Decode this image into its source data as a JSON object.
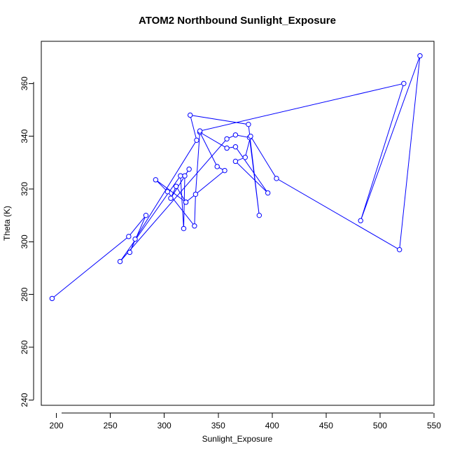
{
  "chart_data": {
    "type": "line",
    "title": "ATOM2 Northbound Sunlight_Exposure",
    "xlabel": "Sunlight_Exposure",
    "ylabel": "Theta (K)",
    "xlim": [
      186,
      550
    ],
    "ylim": [
      238,
      376
    ],
    "xticks": [
      200,
      250,
      300,
      350,
      400,
      450,
      500,
      550
    ],
    "yticks": [
      240,
      260,
      280,
      300,
      320,
      340,
      360
    ],
    "grid": false,
    "line_color": "#0000ff",
    "point_style": "open-circle",
    "series": [
      {
        "points": [
          {
            "x": 196,
            "y": 278.5
          },
          {
            "x": 267,
            "y": 302
          },
          {
            "x": 283,
            "y": 310
          },
          {
            "x": 268,
            "y": 296
          },
          {
            "x": 273,
            "y": 301
          },
          {
            "x": 330,
            "y": 338.5
          },
          {
            "x": 324,
            "y": 348
          },
          {
            "x": 378,
            "y": 344.5
          },
          {
            "x": 388,
            "y": 310
          },
          {
            "x": 379,
            "y": 339.5
          },
          {
            "x": 366,
            "y": 340.5
          },
          {
            "x": 358,
            "y": 339
          },
          {
            "x": 259,
            "y": 292.5
          },
          {
            "x": 315,
            "y": 325
          },
          {
            "x": 318,
            "y": 305
          },
          {
            "x": 319,
            "y": 325
          },
          {
            "x": 323,
            "y": 327.5
          },
          {
            "x": 306,
            "y": 316.5
          },
          {
            "x": 311,
            "y": 321
          },
          {
            "x": 320,
            "y": 315
          },
          {
            "x": 356,
            "y": 327
          },
          {
            "x": 349,
            "y": 328.5
          },
          {
            "x": 333,
            "y": 341.5
          },
          {
            "x": 358,
            "y": 335.5
          },
          {
            "x": 366,
            "y": 336
          },
          {
            "x": 396,
            "y": 318.5
          },
          {
            "x": 366,
            "y": 330.5
          },
          {
            "x": 375,
            "y": 332
          },
          {
            "x": 380,
            "y": 340
          },
          {
            "x": 404,
            "y": 324
          },
          {
            "x": 518,
            "y": 297
          },
          {
            "x": 537,
            "y": 370.5
          },
          {
            "x": 482,
            "y": 308
          },
          {
            "x": 522,
            "y": 360
          },
          {
            "x": 333,
            "y": 342
          },
          {
            "x": 329,
            "y": 318
          },
          {
            "x": 328,
            "y": 306
          },
          {
            "x": 303,
            "y": 319
          },
          {
            "x": 292,
            "y": 323.5
          },
          {
            "x": 320,
            "y": 315
          }
        ]
      }
    ]
  }
}
